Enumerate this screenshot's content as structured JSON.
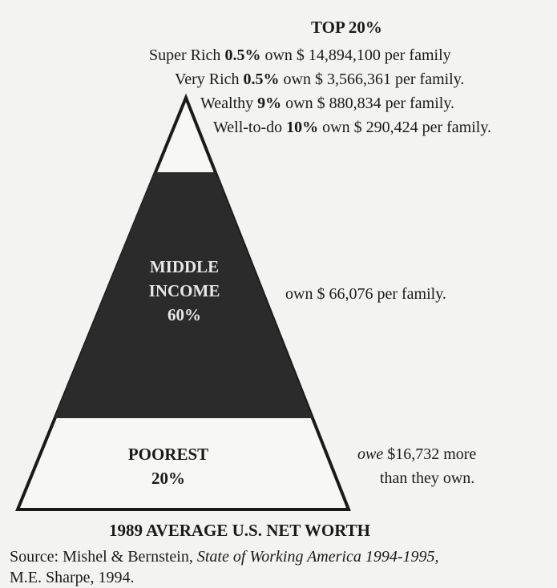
{
  "top": {
    "title": "TOP 20%",
    "tiers": [
      {
        "name": "Super Rich",
        "share": "0.5%",
        "text": "own $ 14,894,100 per family"
      },
      {
        "name": "Very Rich",
        "share": "0.5%",
        "text": "own $ 3,566,361 per family."
      },
      {
        "name": "Wealthy",
        "share": "9%",
        "text": "own $ 880,834 per family."
      },
      {
        "name": "Well-to-do",
        "share": "10%",
        "text": "own $ 290,424 per family."
      }
    ]
  },
  "middle": {
    "lines": [
      "MIDDLE",
      "INCOME",
      "60%"
    ],
    "text": "own $ 66,076 per family."
  },
  "poorest": {
    "lines": [
      "POOREST",
      "20%"
    ],
    "owe": "owe",
    "text": [
      "$16,732 more",
      "than they own."
    ]
  },
  "caption": "1989 AVERAGE U.S. NET WORTH",
  "source": {
    "prefix": "Source: Mishel & Bernstein,",
    "book": "State of Working America 1994-1995,",
    "suffix": "M.E. Sharpe, 1994."
  }
}
